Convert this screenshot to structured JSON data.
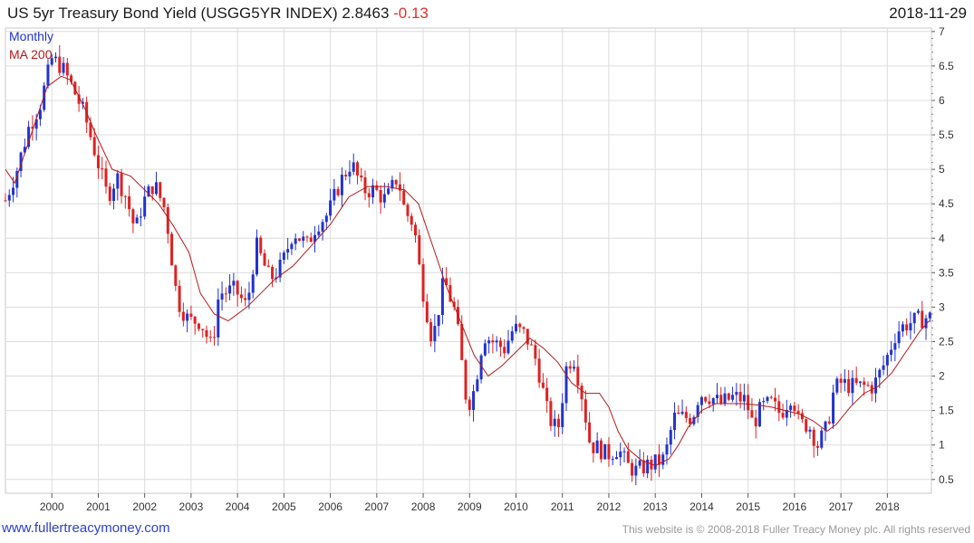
{
  "header": {
    "title": "US 5yr Treasury Bond Yield (USGG5YR INDEX) 2.8463",
    "change": "-0.13",
    "date": "2018-11-29"
  },
  "footer": {
    "link": "www.fullertreacymoney.com",
    "copyright": "This website is © 2008-2018 Fuller Treacy Money plc. All rights reserved"
  },
  "colors": {
    "up": "#2233cc",
    "down": "#dd2222",
    "ma": "#b81818",
    "grid": "#dcdcdc"
  },
  "chart_data": {
    "type": "candlestick",
    "period_label": "Monthly",
    "ma_label": "MA 200",
    "yticks": [
      "0.5",
      "1",
      "1.5",
      "2",
      "2.5",
      "3",
      "3.5",
      "4",
      "4.5",
      "5",
      "5.5",
      "6",
      "6.5",
      "7"
    ],
    "xticks": [
      "2000",
      "2001",
      "2002",
      "2003",
      "2004",
      "2005",
      "2006",
      "2007",
      "2008",
      "2009",
      "2010",
      "2011",
      "2012",
      "2013",
      "2014",
      "2015",
      "2016",
      "2017",
      "2018"
    ],
    "ylim": [
      0.3,
      7.05
    ],
    "xlim": [
      1999.0,
      2018.95
    ],
    "closes": [
      [
        1999.0,
        4.55
      ],
      [
        1999.25,
        5.0
      ],
      [
        1999.5,
        5.6
      ],
      [
        1999.75,
        5.95
      ],
      [
        2000.0,
        6.6
      ],
      [
        2000.2,
        6.5
      ],
      [
        2000.4,
        6.25
      ],
      [
        2000.7,
        5.8
      ],
      [
        2000.95,
        5.2
      ],
      [
        2001.2,
        4.6
      ],
      [
        2001.4,
        4.9
      ],
      [
        2001.6,
        4.6
      ],
      [
        2001.8,
        4.1
      ],
      [
        2001.95,
        4.5
      ],
      [
        2002.2,
        4.8
      ],
      [
        2002.45,
        4.4
      ],
      [
        2002.7,
        3.1
      ],
      [
        2002.95,
        2.8
      ],
      [
        2003.2,
        2.8
      ],
      [
        2003.45,
        2.4
      ],
      [
        2003.6,
        3.2
      ],
      [
        2003.95,
        3.25
      ],
      [
        2004.2,
        3.0
      ],
      [
        2004.4,
        3.9
      ],
      [
        2004.7,
        3.4
      ],
      [
        2004.95,
        3.6
      ],
      [
        2005.2,
        4.1
      ],
      [
        2005.5,
        3.9
      ],
      [
        2005.7,
        4.2
      ],
      [
        2005.95,
        4.35
      ],
      [
        2006.2,
        4.8
      ],
      [
        2006.45,
        5.1
      ],
      [
        2006.7,
        4.7
      ],
      [
        2006.95,
        4.7
      ],
      [
        2007.2,
        4.55
      ],
      [
        2007.45,
        4.9
      ],
      [
        2007.6,
        4.4
      ],
      [
        2007.8,
        4.2
      ],
      [
        2007.95,
        3.4
      ],
      [
        2008.2,
        2.5
      ],
      [
        2008.45,
        3.4
      ],
      [
        2008.7,
        2.9
      ],
      [
        2008.95,
        1.55
      ],
      [
        2009.1,
        1.8
      ],
      [
        2009.3,
        2.6
      ],
      [
        2009.5,
        2.5
      ],
      [
        2009.75,
        2.4
      ],
      [
        2009.95,
        2.7
      ],
      [
        2010.2,
        2.6
      ],
      [
        2010.45,
        2.2
      ],
      [
        2010.7,
        1.4
      ],
      [
        2010.9,
        1.2
      ],
      [
        2011.1,
        2.2
      ],
      [
        2011.25,
        2.25
      ],
      [
        2011.4,
        1.8
      ],
      [
        2011.6,
        1.0
      ],
      [
        2011.8,
        0.95
      ],
      [
        2011.95,
        0.85
      ],
      [
        2012.2,
        0.95
      ],
      [
        2012.4,
        0.7
      ],
      [
        2012.6,
        0.62
      ],
      [
        2012.8,
        0.7
      ],
      [
        2012.95,
        0.72
      ],
      [
        2013.2,
        0.8
      ],
      [
        2013.4,
        1.4
      ],
      [
        2013.6,
        1.4
      ],
      [
        2013.8,
        1.4
      ],
      [
        2013.95,
        1.75
      ],
      [
        2014.2,
        1.7
      ],
      [
        2014.4,
        1.6
      ],
      [
        2014.7,
        1.7
      ],
      [
        2014.95,
        1.65
      ],
      [
        2015.1,
        1.3
      ],
      [
        2015.3,
        1.55
      ],
      [
        2015.5,
        1.6
      ],
      [
        2015.7,
        1.45
      ],
      [
        2015.95,
        1.75
      ],
      [
        2016.1,
        1.3
      ],
      [
        2016.3,
        1.3
      ],
      [
        2016.5,
        1.0
      ],
      [
        2016.7,
        1.25
      ],
      [
        2016.85,
        1.8
      ],
      [
        2017.0,
        1.9
      ],
      [
        2017.25,
        1.85
      ],
      [
        2017.5,
        1.85
      ],
      [
        2017.7,
        1.85
      ],
      [
        2017.95,
        2.2
      ],
      [
        2018.2,
        2.65
      ],
      [
        2018.4,
        2.75
      ],
      [
        2018.6,
        2.8
      ],
      [
        2018.85,
        2.85
      ]
    ],
    "ma200": [
      [
        1999.0,
        5.0
      ],
      [
        1999.2,
        4.8
      ],
      [
        1999.4,
        5.2
      ],
      [
        1999.7,
        5.8
      ],
      [
        1999.9,
        6.2
      ],
      [
        2000.2,
        6.35
      ],
      [
        2000.4,
        6.3
      ],
      [
        2000.7,
        5.9
      ],
      [
        2000.95,
        5.5
      ],
      [
        2001.3,
        5.0
      ],
      [
        2001.7,
        4.9
      ],
      [
        2002.0,
        4.7
      ],
      [
        2002.3,
        4.5
      ],
      [
        2002.6,
        4.2
      ],
      [
        2002.95,
        3.8
      ],
      [
        2003.2,
        3.2
      ],
      [
        2003.5,
        2.9
      ],
      [
        2003.8,
        2.8
      ],
      [
        2004.2,
        3.0
      ],
      [
        2004.5,
        3.2
      ],
      [
        2004.8,
        3.4
      ],
      [
        2005.2,
        3.6
      ],
      [
        2005.6,
        3.9
      ],
      [
        2006.0,
        4.2
      ],
      [
        2006.4,
        4.6
      ],
      [
        2006.8,
        4.75
      ],
      [
        2007.2,
        4.75
      ],
      [
        2007.6,
        4.7
      ],
      [
        2007.9,
        4.5
      ],
      [
        2008.2,
        3.9
      ],
      [
        2008.5,
        3.3
      ],
      [
        2008.8,
        2.8
      ],
      [
        2009.1,
        2.3
      ],
      [
        2009.4,
        2.0
      ],
      [
        2009.7,
        2.15
      ],
      [
        2010.0,
        2.35
      ],
      [
        2010.3,
        2.55
      ],
      [
        2010.6,
        2.4
      ],
      [
        2010.9,
        2.2
      ],
      [
        2011.2,
        1.9
      ],
      [
        2011.5,
        1.75
      ],
      [
        2011.8,
        1.75
      ],
      [
        2012.0,
        1.55
      ],
      [
        2012.2,
        1.2
      ],
      [
        2012.4,
        0.95
      ],
      [
        2012.7,
        0.78
      ],
      [
        2013.0,
        0.7
      ],
      [
        2013.3,
        0.8
      ],
      [
        2013.5,
        1.0
      ],
      [
        2013.7,
        1.25
      ],
      [
        2014.0,
        1.5
      ],
      [
        2014.3,
        1.6
      ],
      [
        2014.6,
        1.6
      ],
      [
        2014.9,
        1.6
      ],
      [
        2015.2,
        1.58
      ],
      [
        2015.5,
        1.55
      ],
      [
        2015.8,
        1.5
      ],
      [
        2016.1,
        1.45
      ],
      [
        2016.4,
        1.35
      ],
      [
        2016.7,
        1.2
      ],
      [
        2016.9,
        1.3
      ],
      [
        2017.2,
        1.55
      ],
      [
        2017.5,
        1.75
      ],
      [
        2017.8,
        1.85
      ],
      [
        2018.1,
        2.05
      ],
      [
        2018.4,
        2.35
      ],
      [
        2018.7,
        2.65
      ],
      [
        2018.9,
        2.8
      ]
    ]
  }
}
